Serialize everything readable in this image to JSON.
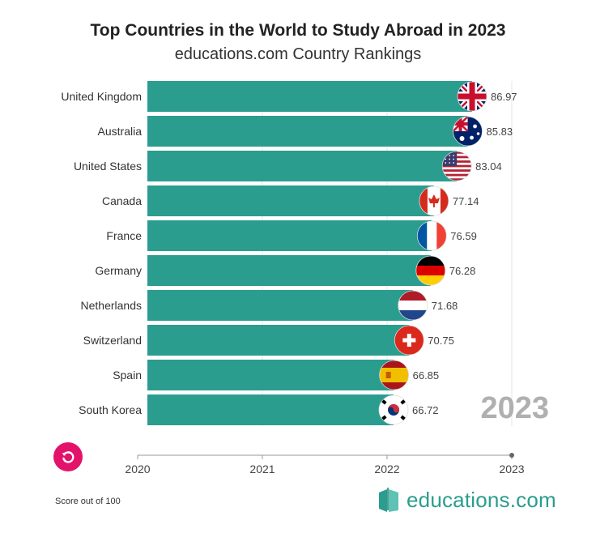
{
  "header": {
    "title": "Top Countries in the World to Study Abroad in 2023",
    "subtitle": "educations.com Country Rankings"
  },
  "footer": {
    "note": "Score out of 100",
    "brand": "educations.com"
  },
  "colors": {
    "bar": "#2a9d8f",
    "replay": "#e3126b",
    "year_label": "#b0b0b0"
  },
  "chart_data": {
    "type": "bar",
    "orientation": "horizontal",
    "categories": [
      "United Kingdom",
      "Australia",
      "United States",
      "Canada",
      "France",
      "Germany",
      "Netherlands",
      "Switzerland",
      "Spain",
      "South Korea"
    ],
    "values": [
      86.97,
      85.83,
      83.04,
      77.14,
      76.59,
      76.28,
      71.68,
      70.75,
      66.85,
      66.72
    ],
    "value_labels": [
      "86.97",
      "85.83",
      "83.04",
      "77.14",
      "76.59",
      "76.28",
      "71.68",
      "70.75",
      "66.85",
      "66.72"
    ],
    "flags": [
      "uk-flag-icon",
      "australia-flag-icon",
      "usa-flag-icon",
      "canada-flag-icon",
      "france-flag-icon",
      "germany-flag-icon",
      "netherlands-flag-icon",
      "switzerland-flag-icon",
      "spain-flag-icon",
      "south-korea-flag-icon"
    ],
    "time_axis": {
      "ticks": [
        "2020",
        "2021",
        "2022",
        "2023"
      ],
      "current": "2023"
    },
    "current_year_label": "2023",
    "grid": true
  }
}
